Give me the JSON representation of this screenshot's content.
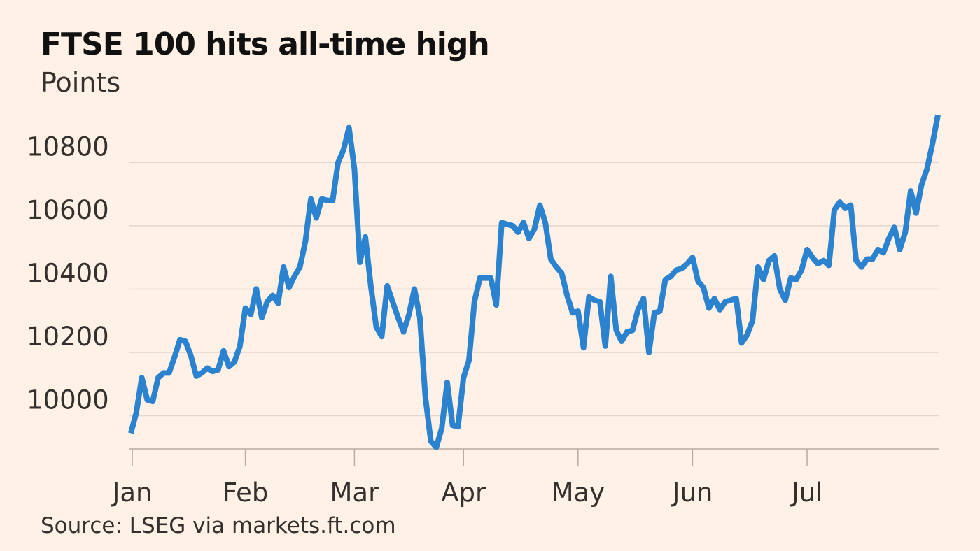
{
  "chart_data": {
    "type": "line",
    "title": "FTSE 100 hits all-time high",
    "subtitle": "Points",
    "source": "Source: LSEG via markets.ft.com",
    "y_ticks": [
      10000,
      10200,
      10400,
      10600,
      10800
    ],
    "x_ticks": [
      "Jan",
      "Feb",
      "Mar",
      "Apr",
      "May",
      "Jun",
      "Jul"
    ],
    "ylim": [
      9895,
      10960
    ],
    "grid": "horizontal",
    "line_color": "#2b83cf",
    "series": [
      {
        "values": [
          9945,
          10010,
          10120,
          10050,
          10045,
          10120,
          10135,
          10135,
          10185,
          10240,
          10235,
          10190,
          10125,
          10135,
          10150,
          10140,
          10145,
          10205,
          10155,
          10170,
          10220,
          10340,
          10320,
          10400,
          10310,
          10360,
          10380,
          10355,
          10470,
          10405,
          10440,
          10470,
          10550,
          10685,
          10625,
          10685,
          10680,
          10680,
          10800,
          10840,
          10910,
          10780,
          10485,
          10565,
          10410,
          10280,
          10250,
          10410,
          10360,
          10310,
          10265,
          10320,
          10400,
          10310,
          10060,
          9920,
          9900,
          9960,
          10105,
          9970,
          9965,
          10120,
          10175,
          10360,
          10435,
          10435,
          10435,
          10350,
          10610,
          10605,
          10600,
          10580,
          10610,
          10560,
          10590,
          10665,
          10610,
          10495,
          10470,
          10450,
          10380,
          10325,
          10330,
          10215,
          10375,
          10365,
          10360,
          10220,
          10440,
          10270,
          10235,
          10265,
          10270,
          10335,
          10370,
          10200,
          10325,
          10330,
          10430,
          10440,
          10460,
          10465,
          10480,
          10500,
          10425,
          10405,
          10340,
          10370,
          10335,
          10360,
          10365,
          10370,
          10230,
          10255,
          10300,
          10470,
          10430,
          10490,
          10505,
          10400,
          10365,
          10435,
          10430,
          10460,
          10525,
          10500,
          10480,
          10490,
          10475,
          10650,
          10675,
          10655,
          10665,
          10490,
          10470,
          10495,
          10495,
          10525,
          10515,
          10560,
          10595,
          10525,
          10580,
          10710,
          10640,
          10730,
          10780,
          10860,
          10950
        ]
      }
    ]
  }
}
